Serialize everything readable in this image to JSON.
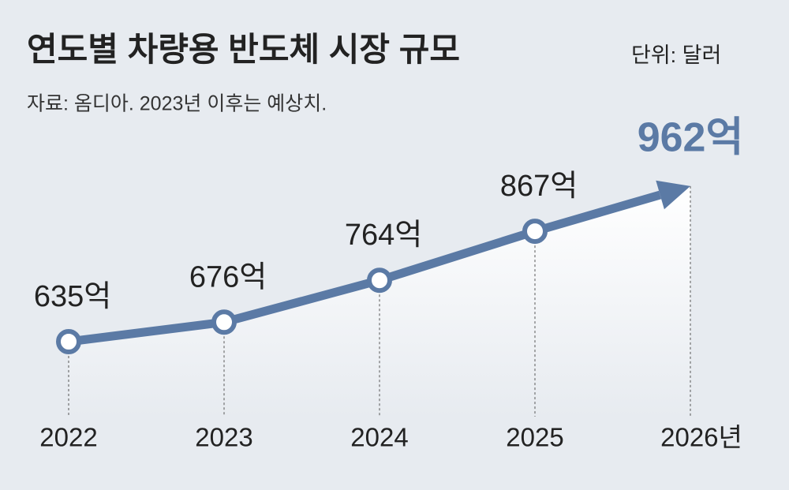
{
  "chart_data": {
    "type": "line",
    "title": "연도별 차량용 반도체 시장 규모",
    "unit": "단위: 달러",
    "source": "자료: 옴디아. 2023년 이후는 예상치.",
    "categories": [
      "2022",
      "2023",
      "2024",
      "2025",
      "2026년"
    ],
    "values": [
      635,
      676,
      764,
      867,
      962
    ],
    "value_labels": [
      "635억",
      "676억",
      "764억",
      "867억",
      "962억"
    ],
    "color": "#5b7aa5",
    "highlight_color": "#5b7aa5"
  }
}
